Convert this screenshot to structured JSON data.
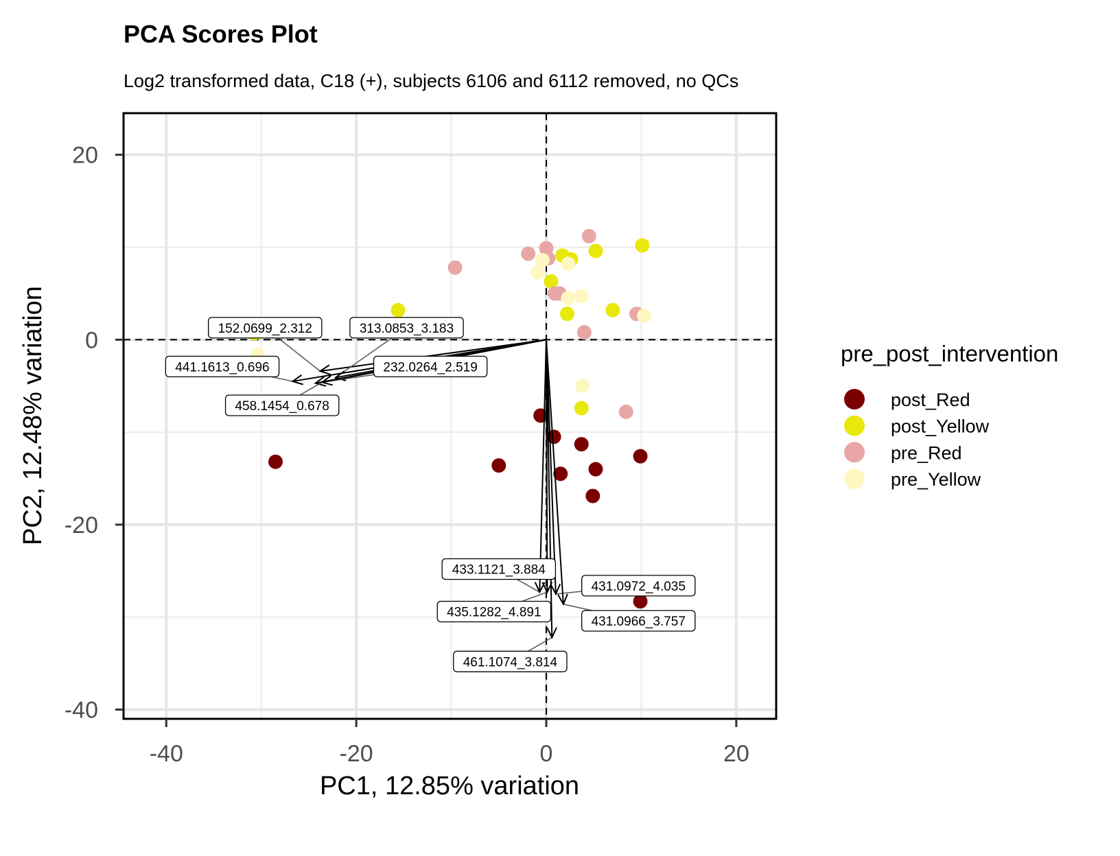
{
  "chart_data": {
    "type": "scatter",
    "title": "PCA Scores Plot",
    "subtitle": "Log2 transformed data, C18 (+), subjects 6106 and 6112 removed, no QCs",
    "xlabel": "PC1, 12.85% variation",
    "ylabel": "PC2, 12.48% variation",
    "xlim": [
      -44.5,
      24.2
    ],
    "ylim": [
      -41,
      24.5
    ],
    "xticks": [
      -40,
      -20,
      0,
      20
    ],
    "yticks": [
      20,
      0,
      -20,
      -40
    ],
    "xtick_labels": [
      "-40",
      "-20",
      "0",
      "20"
    ],
    "ytick_labels": [
      "20",
      "0",
      "-20",
      "-40"
    ],
    "grid": true,
    "reference_lines": {
      "x": 0,
      "y": 0,
      "style": "dashed"
    },
    "legend": {
      "title": "pre_post_intervention",
      "position": "right",
      "entries": [
        {
          "label": "post_Red",
          "color": "#7a0000"
        },
        {
          "label": "post_Yellow",
          "color": "#e8e80c"
        },
        {
          "label": "pre_Red",
          "color": "#e8a6a6"
        },
        {
          "label": "pre_Yellow",
          "color": "#fff7c2"
        }
      ]
    },
    "series": [
      {
        "name": "post_Red",
        "color": "#7a0000",
        "points": [
          [
            -28.5,
            -13.2
          ],
          [
            -5.0,
            -13.6
          ],
          [
            -0.6,
            -8.2
          ],
          [
            0.8,
            -10.5
          ],
          [
            1.5,
            -14.5
          ],
          [
            3.7,
            -11.3
          ],
          [
            5.2,
            -14.0
          ],
          [
            4.9,
            -16.9
          ],
          [
            9.9,
            -12.6
          ],
          [
            9.9,
            -28.3
          ]
        ]
      },
      {
        "name": "post_Yellow",
        "color": "#e8e80c",
        "points": [
          [
            -30.7,
            0.7
          ],
          [
            -15.6,
            3.2
          ],
          [
            0.5,
            6.3
          ],
          [
            1.7,
            9.1
          ],
          [
            2.6,
            8.7
          ],
          [
            5.2,
            9.6
          ],
          [
            10.1,
            10.2
          ],
          [
            2.2,
            2.8
          ],
          [
            7.0,
            3.2
          ],
          [
            3.7,
            -7.4
          ]
        ]
      },
      {
        "name": "pre_Red",
        "color": "#e8a6a6",
        "points": [
          [
            -9.6,
            7.8
          ],
          [
            -1.9,
            9.3
          ],
          [
            0.0,
            9.9
          ],
          [
            0.2,
            8.8
          ],
          [
            4.5,
            11.2
          ],
          [
            1.4,
            5.0
          ],
          [
            0.9,
            5.0
          ],
          [
            4.0,
            0.8
          ],
          [
            9.5,
            2.8
          ],
          [
            8.4,
            -7.8
          ]
        ]
      },
      {
        "name": "pre_Yellow",
        "color": "#fff7c2",
        "points": [
          [
            -30.4,
            -1.6
          ],
          [
            -0.4,
            8.6
          ],
          [
            -0.9,
            7.3
          ],
          [
            2.3,
            8.2
          ],
          [
            2.3,
            4.5
          ],
          [
            3.7,
            4.7
          ],
          [
            10.3,
            2.6
          ],
          [
            3.8,
            -5.0
          ]
        ]
      }
    ],
    "loadings": [
      {
        "label": "152.0699_2.312",
        "tip": [
          -23.8,
          -3.4
        ],
        "label_at": [
          -29.6,
          1.3
        ]
      },
      {
        "label": "313.0853_3.183",
        "tip": [
          -22.2,
          -4.1
        ],
        "label_at": [
          -14.7,
          1.3
        ]
      },
      {
        "label": "441.1613_0.696",
        "tip": [
          -26.7,
          -4.5
        ],
        "label_at": [
          -34.1,
          -2.9
        ]
      },
      {
        "label": "232.0264_2.519",
        "tip": [
          -24.3,
          -4.7
        ],
        "label_at": [
          -12.2,
          -2.9
        ]
      },
      {
        "label": "458.1454_0.678",
        "tip": [
          -23.6,
          -4.6
        ],
        "label_at": [
          -27.8,
          -7.1
        ]
      },
      {
        "label": "433.1121_3.884",
        "tip": [
          -0.7,
          -27.3
        ],
        "label_at": [
          -5.0,
          -24.8
        ]
      },
      {
        "label": "435.1282_4.891",
        "tip": [
          0.1,
          -27.3
        ],
        "label_at": [
          -5.5,
          -29.4
        ]
      },
      {
        "label": "431.0972_4.035",
        "tip": [
          1.0,
          -27.5
        ],
        "label_at": [
          9.7,
          -26.6
        ]
      },
      {
        "label": "431.0966_3.757",
        "tip": [
          1.8,
          -28.6
        ],
        "label_at": [
          9.7,
          -30.4
        ]
      },
      {
        "label": "461.1074_3.814",
        "tip": [
          0.6,
          -32.2
        ],
        "label_at": [
          -3.8,
          -34.8
        ]
      }
    ]
  }
}
